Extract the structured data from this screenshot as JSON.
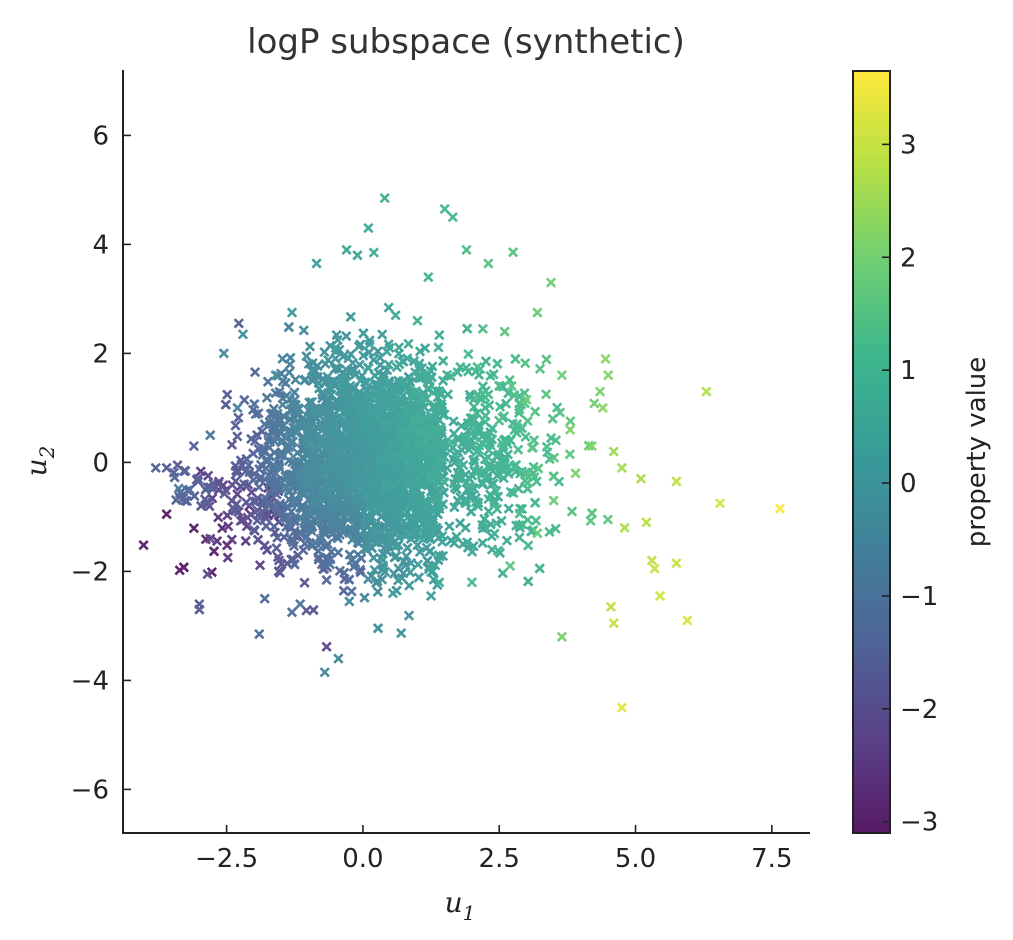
{
  "chart_data": {
    "type": "scatter",
    "title": "logP subspace (synthetic)",
    "xlabel": "u",
    "xlabel_sub": "1",
    "ylabel": "u",
    "ylabel_sub": "2",
    "xlim": [
      -4.4,
      8.2
    ],
    "ylim": [
      -6.8,
      7.2
    ],
    "xticks": [
      -2.5,
      0.0,
      2.5,
      5.0,
      7.5
    ],
    "xtick_labels": [
      "−2.5",
      "0.0",
      "2.5",
      "5.0",
      "7.5"
    ],
    "yticks": [
      -6,
      -4,
      -2,
      0,
      2,
      4,
      6
    ],
    "ytick_labels": [
      "−6",
      "−4",
      "−2",
      "0",
      "2",
      "4",
      "6"
    ],
    "marker": "x",
    "colormap": "viridis",
    "colorbar": {
      "label": "property value",
      "range": [
        -3.1,
        3.65
      ],
      "ticks": [
        -3,
        -2,
        -1,
        0,
        1,
        2,
        3
      ],
      "tick_labels": [
        "−3",
        "−2",
        "−1",
        "0",
        "1",
        "2",
        "3"
      ]
    },
    "points_approx_count": 3000,
    "points": [
      [
        0.4,
        4.85,
        0.9
      ],
      [
        1.5,
        4.65,
        1.1
      ],
      [
        1.65,
        4.5,
        1.2
      ],
      [
        0.1,
        4.3,
        0.7
      ],
      [
        -0.3,
        3.9,
        0.6
      ],
      [
        0.2,
        3.85,
        0.8
      ],
      [
        -0.1,
        3.8,
        0.5
      ],
      [
        1.9,
        3.9,
        1.3
      ],
      [
        2.3,
        3.65,
        1.5
      ],
      [
        -0.85,
        3.65,
        0.3
      ],
      [
        3.45,
        3.3,
        2.0
      ],
      [
        1.2,
        3.4,
        1.0
      ],
      [
        -1.3,
        2.75,
        0.2
      ],
      [
        -2.2,
        2.35,
        -0.1
      ],
      [
        -2.55,
        2.0,
        -0.3
      ],
      [
        4.45,
        1.9,
        2.3
      ],
      [
        4.5,
        1.6,
        2.2
      ],
      [
        4.35,
        1.3,
        2.1
      ],
      [
        6.3,
        1.3,
        2.8
      ],
      [
        4.4,
        1.0,
        2.3
      ],
      [
        4.6,
        0.2,
        2.5
      ],
      [
        4.75,
        -0.1,
        2.6
      ],
      [
        5.1,
        -0.3,
        2.7
      ],
      [
        5.75,
        -0.35,
        2.9
      ],
      [
        6.55,
        -0.75,
        3.2
      ],
      [
        7.65,
        -0.85,
        3.6
      ],
      [
        5.2,
        -1.1,
        2.8
      ],
      [
        4.8,
        -1.2,
        2.7
      ],
      [
        5.3,
        -1.8,
        2.9
      ],
      [
        5.35,
        -1.95,
        3.0
      ],
      [
        5.75,
        -1.85,
        3.0
      ],
      [
        5.45,
        -2.45,
        3.1
      ],
      [
        4.55,
        -2.65,
        2.9
      ],
      [
        4.6,
        -2.95,
        3.0
      ],
      [
        5.95,
        -2.9,
        3.2
      ],
      [
        4.75,
        -4.5,
        3.3
      ],
      [
        3.65,
        -3.2,
        2.0
      ],
      [
        -0.7,
        -3.85,
        -0.4
      ],
      [
        -0.45,
        -3.6,
        -0.5
      ],
      [
        -1.9,
        -3.15,
        -1.2
      ],
      [
        -3.0,
        -2.6,
        -1.7
      ],
      [
        -3.0,
        -2.7,
        -1.8
      ],
      [
        -2.85,
        -2.05,
        -2.0
      ],
      [
        -2.8,
        -1.4,
        -2.3
      ],
      [
        -3.6,
        -0.95,
        -3.1
      ],
      [
        -3.8,
        -0.1,
        -1.5
      ],
      [
        -3.6,
        -0.1,
        -1.7
      ],
      [
        -3.4,
        -0.05,
        -1.8
      ],
      [
        -2.3,
        -0.15,
        -3.0
      ],
      [
        -2.2,
        -1.05,
        -2.4
      ],
      [
        -1.3,
        -2.75,
        -1.1
      ],
      [
        -1.15,
        -2.6,
        -1.0
      ],
      [
        -1.8,
        -2.5,
        -1.3
      ],
      [
        -0.25,
        -2.55,
        -0.4
      ],
      [
        0.55,
        -2.4,
        0.1
      ],
      [
        1.25,
        -2.45,
        0.3
      ],
      [
        0.6,
        2.7,
        0.7
      ],
      [
        -0.5,
        2.1,
        0.3
      ],
      [
        1.0,
        2.6,
        0.9
      ],
      [
        2.6,
        2.4,
        1.6
      ],
      [
        3.2,
        2.75,
        1.8
      ],
      [
        3.65,
        1.6,
        1.9
      ],
      [
        2.1,
        1.75,
        1.3
      ],
      [
        -1.6,
        1.6,
        -0.1
      ],
      [
        -2.3,
        1.0,
        -0.6
      ],
      [
        -2.8,
        0.5,
        -1.0
      ],
      [
        -3.1,
        0.3,
        -1.4
      ],
      [
        3.0,
        1.15,
        1.8
      ],
      [
        3.8,
        0.6,
        2.1
      ],
      [
        4.2,
        0.3,
        2.2
      ],
      [
        3.9,
        -0.2,
        2.1
      ],
      [
        3.5,
        -0.7,
        1.9
      ],
      [
        3.2,
        -1.3,
        1.8
      ],
      [
        2.7,
        -1.9,
        1.6
      ],
      [
        2.0,
        -2.2,
        1.2
      ],
      [
        1.4,
        -2.2,
        0.8
      ]
    ]
  }
}
